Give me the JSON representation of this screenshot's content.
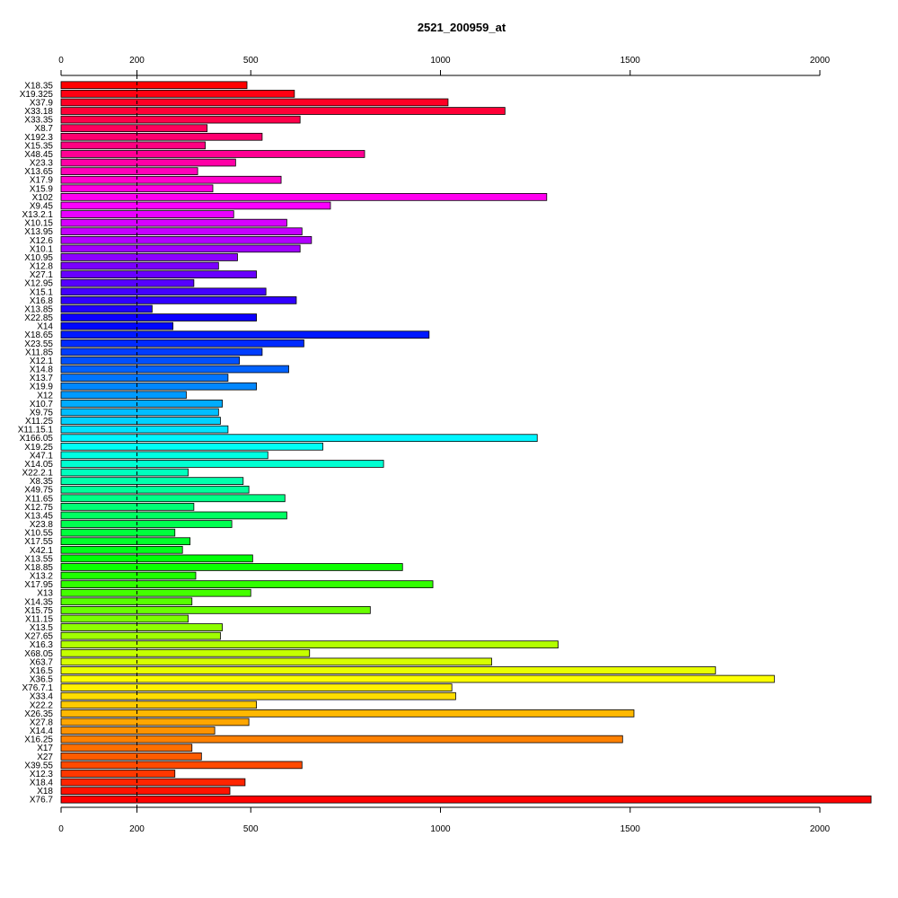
{
  "chart_data": {
    "type": "bar",
    "orientation": "horizontal",
    "title": "2521_200959_at",
    "xlabel": "",
    "ylabel": "",
    "xlim": [
      0,
      2135
    ],
    "axis_ticks": [
      0,
      200,
      500,
      1000,
      1500,
      2000
    ],
    "reference_line": 200,
    "axes": "top and bottom",
    "grid": false,
    "legend": "none",
    "bar_color_scheme": "rainbow",
    "categories": [
      "X18.35",
      "X19.325",
      "X37.9",
      "X33.18",
      "X33.35",
      "X8.7",
      "X192.3",
      "X15.35",
      "X48.45",
      "X23.3",
      "X13.65",
      "X17.9",
      "X15.9",
      "X102",
      "X9.45",
      "X13.2.1",
      "X10.15",
      "X13.95",
      "X12.6",
      "X10.1",
      "X10.95",
      "X12.8",
      "X27.1",
      "X12.95",
      "X15.1",
      "X16.8",
      "X13.85",
      "X22.85",
      "X14",
      "X18.65",
      "X23.55",
      "X11.85",
      "X12.1",
      "X14.8",
      "X13.7",
      "X19.9",
      "X12",
      "X10.7",
      "X9.75",
      "X11.25",
      "X11.15.1",
      "X166.05",
      "X19.25",
      "X47.1",
      "X14.05",
      "X22.2.1",
      "X8.35",
      "X49.75",
      "X11.65",
      "X12.75",
      "X13.45",
      "X23.8",
      "X10.55",
      "X17.55",
      "X42.1",
      "X13.55",
      "X18.85",
      "X13.2",
      "X17.95",
      "X13",
      "X14.35",
      "X15.75",
      "X11.15",
      "X13.5",
      "X27.65",
      "X16.3",
      "X68.05",
      "X63.7",
      "X16.5",
      "X36.5",
      "X76.7.1",
      "X33.4",
      "X22.2",
      "X26.35",
      "X27.8",
      "X14.4",
      "X16.25",
      "X17",
      "X27",
      "X39.55",
      "X12.3",
      "X18.4",
      "X18",
      "X76.7"
    ],
    "values": [
      490,
      615,
      1020,
      1170,
      630,
      385,
      530,
      380,
      800,
      460,
      360,
      580,
      400,
      1280,
      710,
      455,
      595,
      635,
      660,
      630,
      465,
      415,
      515,
      350,
      540,
      620,
      240,
      515,
      295,
      970,
      640,
      530,
      470,
      600,
      440,
      515,
      330,
      425,
      415,
      420,
      440,
      1255,
      690,
      545,
      850,
      335,
      480,
      495,
      590,
      350,
      595,
      450,
      300,
      340,
      320,
      505,
      900,
      355,
      980,
      500,
      345,
      815,
      335,
      425,
      420,
      1310,
      655,
      1135,
      1725,
      1880,
      1030,
      1040,
      515,
      1510,
      495,
      405,
      1480,
      345,
      370,
      635,
      300,
      485,
      445,
      2135
    ]
  }
}
